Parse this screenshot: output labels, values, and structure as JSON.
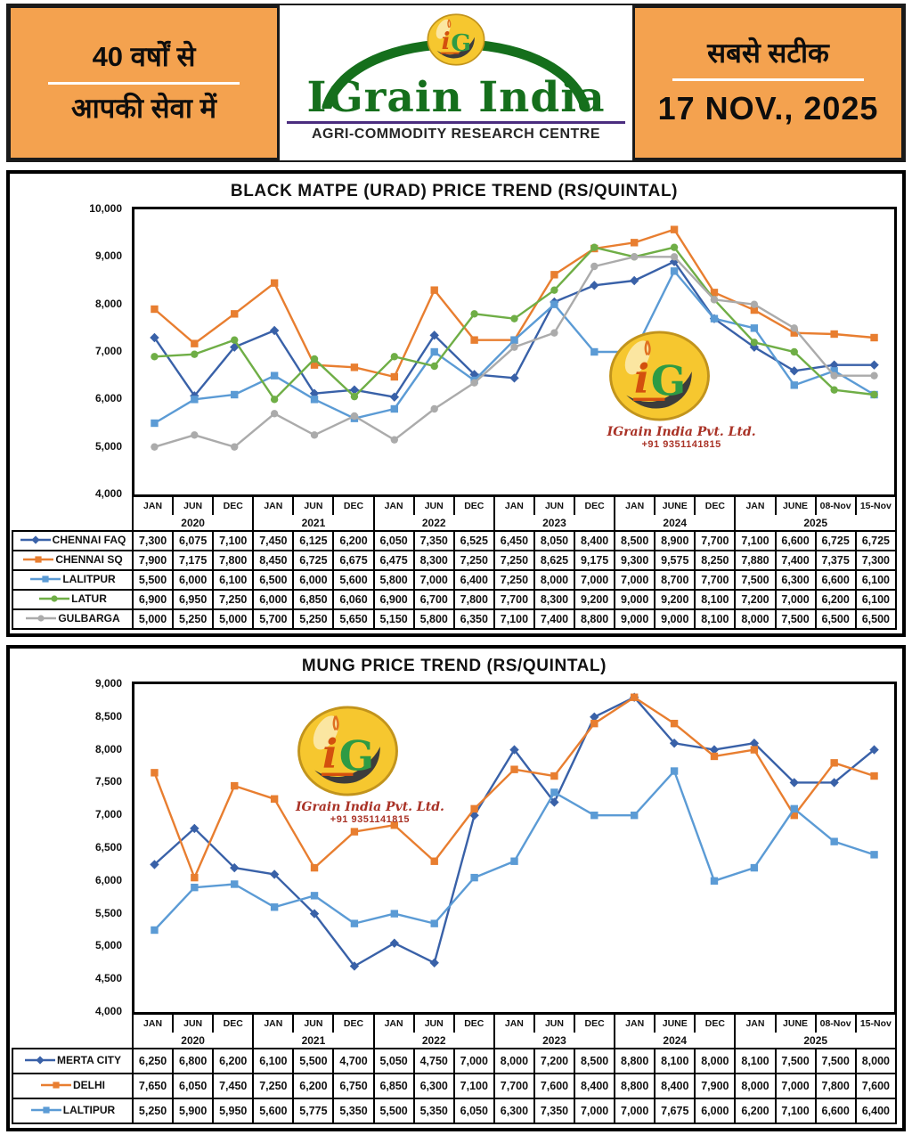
{
  "header": {
    "left_line1": "40 वर्षों से",
    "left_line2": "आपकी सेवा में",
    "brand": "IGrain India",
    "brand_sub": "AGRI-COMMODITY RESEARCH CENTRE",
    "right_line1": "सबसे सटीक",
    "date": "17 NOV., 2025",
    "colors": {
      "orange": "#F4A24F",
      "brand_green": "#156f1c",
      "underline_purple": "#4b2d7f"
    }
  },
  "watermark": {
    "name": "IGrain India Pvt. Ltd.",
    "phone": "+91 9351141815",
    "logo_letters": "iG"
  },
  "chart_data": [
    {
      "type": "line",
      "title": "BLACK MATPE (URAD) PRICE TREND (RS/QUINTAL)",
      "ylim": [
        4000,
        10000
      ],
      "ytick_step": 1000,
      "grid": false,
      "legend_position": "table-left-column",
      "x_months": [
        "JAN",
        "JUN",
        "DEC",
        "JAN",
        "JUN",
        "DEC",
        "JAN",
        "JUN",
        "DEC",
        "JAN",
        "JUN",
        "DEC",
        "JAN",
        "JUNE",
        "DEC",
        "JAN",
        "JUNE",
        "08-Nov",
        "15-Nov"
      ],
      "x_years": [
        {
          "label": "2020",
          "span": 3
        },
        {
          "label": "2021",
          "span": 3
        },
        {
          "label": "2022",
          "span": 3
        },
        {
          "label": "2023",
          "span": 3
        },
        {
          "label": "2024",
          "span": 3
        },
        {
          "label": "2025",
          "span": 4
        }
      ],
      "series": [
        {
          "name": "CHENNAI FAQ",
          "color": "#3961A8",
          "marker": "diamond",
          "values": [
            7300,
            6075,
            7100,
            7450,
            6125,
            6200,
            6050,
            7350,
            6525,
            6450,
            8050,
            8400,
            8500,
            8900,
            7700,
            7100,
            6600,
            6725,
            6725
          ]
        },
        {
          "name": "CHENNAI SQ",
          "color": "#E87E30",
          "marker": "square",
          "values": [
            7900,
            7175,
            7800,
            8450,
            6725,
            6675,
            6475,
            8300,
            7250,
            7250,
            8625,
            9175,
            9300,
            9575,
            8250,
            7880,
            7400,
            7375,
            7300
          ]
        },
        {
          "name": "LALITPUR",
          "color": "#5B9BD5",
          "marker": "square",
          "values": [
            5500,
            6000,
            6100,
            6500,
            6000,
            5600,
            5800,
            7000,
            6400,
            7250,
            8000,
            7000,
            7000,
            8700,
            7700,
            7500,
            6300,
            6600,
            6100
          ]
        },
        {
          "name": "LATUR",
          "color": "#6FAE46",
          "marker": "circle",
          "values": [
            6900,
            6950,
            7250,
            6000,
            6850,
            6060,
            6900,
            6700,
            7800,
            7700,
            8300,
            9200,
            9000,
            9200,
            8100,
            7200,
            7000,
            6200,
            6100
          ]
        },
        {
          "name": "GULBARGA",
          "color": "#ABABAB",
          "marker": "circle",
          "values": [
            5000,
            5250,
            5000,
            5700,
            5250,
            5650,
            5150,
            5800,
            6350,
            7100,
            7400,
            8800,
            9000,
            9000,
            8100,
            8000,
            7500,
            6500,
            6500
          ]
        }
      ]
    },
    {
      "type": "line",
      "title": "MUNG PRICE TREND (RS/QUINTAL)",
      "ylim": [
        4000,
        9000
      ],
      "ytick_step": 500,
      "grid": false,
      "legend_position": "table-left-column",
      "x_months": [
        "JAN",
        "JUN",
        "DEC",
        "JAN",
        "JUN",
        "DEC",
        "JAN",
        "JUN",
        "DEC",
        "JAN",
        "JUN",
        "DEC",
        "JAN",
        "JUNE",
        "DEC",
        "JAN",
        "JUNE",
        "08-Nov",
        "15-Nov"
      ],
      "x_years": [
        {
          "label": "2020",
          "span": 3
        },
        {
          "label": "2021",
          "span": 3
        },
        {
          "label": "2022",
          "span": 3
        },
        {
          "label": "2023",
          "span": 3
        },
        {
          "label": "2024",
          "span": 3
        },
        {
          "label": "2025",
          "span": 4
        }
      ],
      "series": [
        {
          "name": "MERTA CITY",
          "color": "#3961A8",
          "marker": "diamond",
          "values": [
            6250,
            6800,
            6200,
            6100,
            5500,
            4700,
            5050,
            4750,
            7000,
            8000,
            7200,
            8500,
            8800,
            8100,
            8000,
            8100,
            7500,
            7500,
            8000
          ]
        },
        {
          "name": "DELHI",
          "color": "#E87E30",
          "marker": "square",
          "values": [
            7650,
            6050,
            7450,
            7250,
            6200,
            6750,
            6850,
            6300,
            7100,
            7700,
            7600,
            8400,
            8800,
            8400,
            7900,
            8000,
            7000,
            7800,
            7600
          ]
        },
        {
          "name": "LALTIPUR",
          "color": "#5B9BD5",
          "marker": "square",
          "values": [
            5250,
            5900,
            5950,
            5600,
            5775,
            5350,
            5500,
            5350,
            6050,
            6300,
            7350,
            7000,
            7000,
            7675,
            6000,
            6200,
            7100,
            6600,
            6400
          ]
        }
      ]
    }
  ]
}
